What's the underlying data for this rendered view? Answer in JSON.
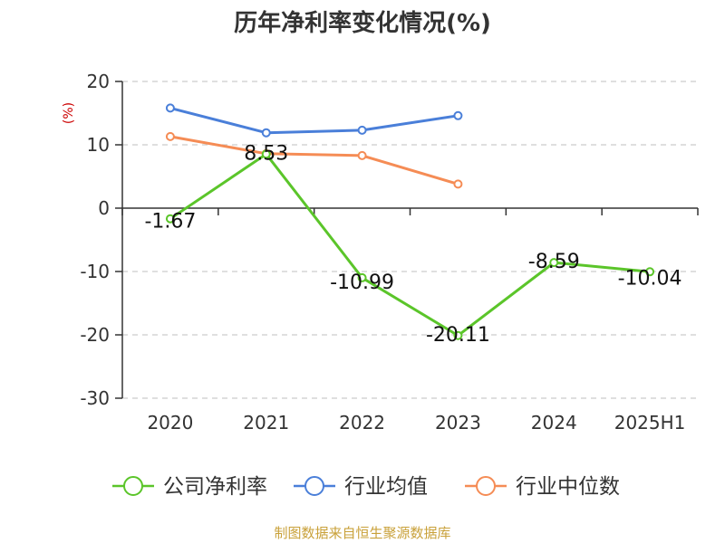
{
  "chart_data": {
    "type": "line",
    "title": "历年净利率变化情况(%)",
    "ylabel": "(%)",
    "xlabel": "",
    "categories": [
      "2020",
      "2021",
      "2022",
      "2023",
      "2024",
      "2025H1"
    ],
    "ylim": [
      -30,
      20
    ],
    "yticks": [
      20,
      10,
      0,
      -10,
      -20,
      -30
    ],
    "grid": true,
    "legend_position": "bottom",
    "series": [
      {
        "name": "公司净利率",
        "color": "#5bc52a",
        "values": [
          -1.67,
          8.53,
          -10.99,
          -20.11,
          -8.59,
          -10.04
        ],
        "labels": [
          "-1.67",
          "8.53",
          "-10.99",
          "-20.11",
          "-8.59",
          "-10.04"
        ]
      },
      {
        "name": "行业均值",
        "color": "#4a7fd9",
        "values": [
          15.8,
          11.9,
          12.3,
          14.6,
          null,
          null
        ]
      },
      {
        "name": "行业中位数",
        "color": "#f58c55",
        "values": [
          11.3,
          8.6,
          8.3,
          3.8,
          null,
          null
        ]
      }
    ]
  },
  "footer": {
    "source": "制图数据来自恒生聚源数据库",
    "source_color": "#c9a13a"
  },
  "colors": {
    "grid": "#cccccc",
    "axis": "#333333",
    "ylabel": "#cc0000"
  }
}
